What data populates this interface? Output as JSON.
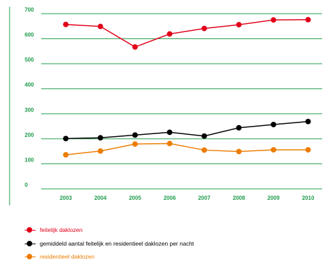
{
  "chart_data": {
    "type": "line",
    "x": [
      "2003",
      "2004",
      "2005",
      "2006",
      "2007",
      "2008",
      "2009",
      "2010"
    ],
    "y_ticks": [
      0,
      100,
      200,
      300,
      400,
      500,
      600,
      700
    ],
    "ylim": [
      0,
      700
    ],
    "grid": true,
    "legend_position": "bottom-left",
    "series": [
      {
        "name": "feitelijk daklozen",
        "color": "#e2001a",
        "values": [
          657,
          649,
          567,
          619,
          641,
          656,
          675,
          676
        ]
      },
      {
        "name": "gemiddeld aantal feitelijk en residentieel daklozen per nacht",
        "color": "#000000",
        "values": [
          201,
          204,
          215,
          226,
          211,
          244,
          257,
          269
        ]
      },
      {
        "name": "residentieel daklozen",
        "color": "#ec7c00",
        "values": [
          136,
          151,
          179,
          181,
          155,
          149,
          156,
          156
        ]
      }
    ],
    "axis_color": "#1e9c4a",
    "label_color": "#1e9c4a"
  }
}
